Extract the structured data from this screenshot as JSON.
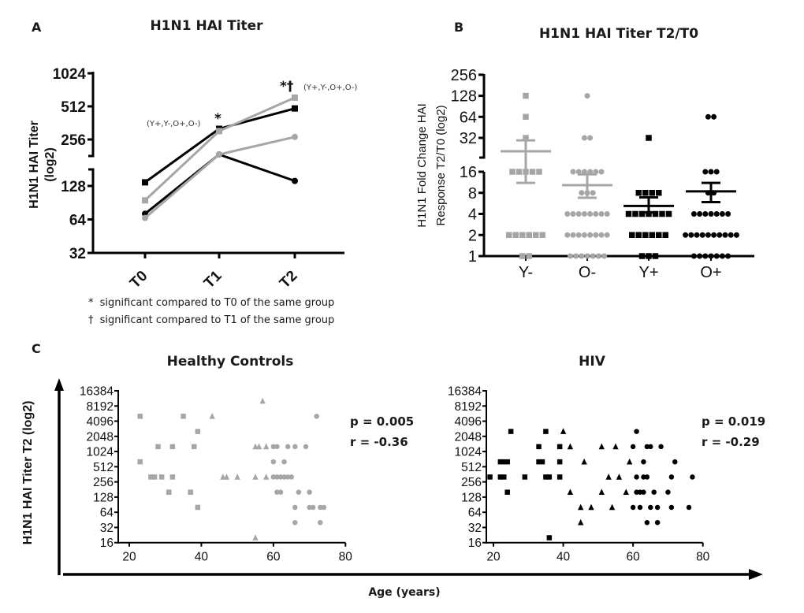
{
  "figure": {
    "panel_letters": {
      "a": "A",
      "b": "B",
      "c": "C"
    },
    "shared_c": {
      "ylabel": "H1N1 HAI Titer T2 (log2)",
      "xlabel": "Age (years)"
    }
  },
  "colors": {
    "black": "#000000",
    "gray": "#a6a6a6"
  },
  "chart_data": [
    {
      "id": "panel-a",
      "type": "line",
      "title": "H1N1 HAI Titer",
      "xlabel": "",
      "ylabel": "H1N1 HAI Titer (log2)",
      "ylabel_lines": [
        "H1N1 HAI Titer",
        "(log2)"
      ],
      "yscale": "log2",
      "ylim": [
        32,
        1024
      ],
      "y_axis_break": [
        180,
        150
      ],
      "yticks": [
        32,
        64,
        128,
        256,
        512,
        1024
      ],
      "ytick_labels": [
        "32",
        "64",
        "128",
        "256",
        "512",
        "1024"
      ],
      "categories": [
        "T0",
        "T1",
        "T2"
      ],
      "grid": false,
      "series": [
        {
          "name": "series-black-square",
          "marker": "square",
          "color": "#000000",
          "values": [
            138,
            320,
            490
          ]
        },
        {
          "name": "series-gray-square",
          "marker": "square",
          "color": "#a6a6a6",
          "values": [
            95,
            305,
            615
          ]
        },
        {
          "name": "series-black-circle",
          "marker": "circle",
          "color": "#000000",
          "values": [
            72,
            187,
            142
          ]
        },
        {
          "name": "series-gray-circle",
          "marker": "circle",
          "color": "#a6a6a6",
          "values": [
            66,
            187,
            270
          ]
        }
      ],
      "annotations": [
        {
          "category": "T1",
          "symbol": "*",
          "groups": "(Y+,Y-,O+,O-)"
        },
        {
          "category": "T2",
          "symbol": "*†",
          "groups": "(Y+,Y-,O+,O-)"
        }
      ],
      "footnotes": [
        {
          "symbol": "*",
          "text": "significant compared to T0 of the same group"
        },
        {
          "symbol": "†",
          "text": "significant compared to T1 of the same group"
        }
      ]
    },
    {
      "id": "panel-b",
      "type": "scatter",
      "title": "H1N1 HAI Titer T2/T0",
      "xlabel": "",
      "ylabel": "H1N1 Fold Change HAI Response T2/T0 (log2)",
      "ylabel_lines": [
        "H1N1 Fold Change HAI",
        "Response T2/T0 (log2)"
      ],
      "yscale": "log2",
      "ylim": [
        1,
        256
      ],
      "y_axis_break": [
        24,
        16
      ],
      "yticks": [
        1,
        2,
        4,
        8,
        16,
        32,
        64,
        128,
        256
      ],
      "ytick_labels": [
        "1",
        "2",
        "4",
        "8",
        "16",
        "32",
        "64",
        "128",
        "256"
      ],
      "categories": [
        "Y-",
        "O-",
        "Y+",
        "O+"
      ],
      "grid": false,
      "groups": [
        {
          "name": "Y-",
          "marker": "square",
          "color": "#a6a6a6",
          "counts": {
            "1": 2,
            "2": 6,
            "16": 5,
            "32": 1,
            "64": 1,
            "128": 1
          },
          "mean": 20.6,
          "sem": [
            11.1,
            29.5
          ]
        },
        {
          "name": "O-",
          "marker": "circle",
          "color": "#a6a6a6",
          "counts": {
            "1": 7,
            "2": 8,
            "4": 8,
            "8": 3,
            "16": 6,
            "32": 2,
            "128": 1
          },
          "mean": 10.3,
          "sem": [
            6.8,
            14.7
          ]
        },
        {
          "name": "Y+",
          "marker": "square",
          "color": "#000000",
          "counts": {
            "1": 3,
            "2": 6,
            "4": 7,
            "8": 4,
            "32": 1
          },
          "mean": 5.2,
          "sem": [
            4.2,
            6.9
          ]
        },
        {
          "name": "O+",
          "marker": "circle",
          "color": "#000000",
          "counts": {
            "1": 7,
            "2": 10,
            "4": 7,
            "8": 2,
            "16": 3,
            "64": 2
          },
          "mean": 8.4,
          "sem": [
            5.9,
            11.1
          ]
        }
      ]
    },
    {
      "id": "panel-c-healthy",
      "type": "scatter",
      "title": "Healthy Controls",
      "xlabel": "Age (years)",
      "ylabel": "H1N1 HAI Titer T2 (log2)",
      "yscale": "log2",
      "xlim": [
        20,
        80
      ],
      "ylim": [
        16,
        16384
      ],
      "xticks": [
        20,
        40,
        60,
        80
      ],
      "xtick_labels": [
        "20",
        "40",
        "60",
        "80"
      ],
      "yticks": [
        16,
        32,
        64,
        128,
        256,
        512,
        1024,
        2048,
        4096,
        8192,
        16384
      ],
      "ytick_labels": [
        "16",
        "32",
        "64",
        "128",
        "256",
        "512",
        "1024",
        "2048",
        "4096",
        "8192",
        "16384"
      ],
      "grid": false,
      "stats": {
        "p": "p = 0.005",
        "r": "r = -0.36"
      },
      "color": "#a6a6a6",
      "series": [
        {
          "name": "squares",
          "marker": "square",
          "points": [
            [
              23,
              5120
            ],
            [
              35,
              5120
            ],
            [
              39,
              2560
            ],
            [
              28,
              1280
            ],
            [
              32,
              1280
            ],
            [
              38,
              1280
            ],
            [
              23,
              640
            ],
            [
              26,
              320
            ],
            [
              27,
              320
            ],
            [
              29,
              320
            ],
            [
              32,
              320
            ],
            [
              31,
              160
            ],
            [
              37,
              160
            ],
            [
              39,
              80
            ]
          ]
        },
        {
          "name": "triangles",
          "marker": "triangle",
          "points": [
            [
              57,
              10240
            ],
            [
              43,
              5120
            ],
            [
              55,
              1280
            ],
            [
              56,
              1280
            ],
            [
              58,
              1280
            ],
            [
              46,
              320
            ],
            [
              47,
              320
            ],
            [
              50,
              320
            ],
            [
              55,
              320
            ],
            [
              58,
              320
            ],
            [
              55,
              20
            ]
          ]
        },
        {
          "name": "circles",
          "marker": "circle",
          "points": [
            [
              72,
              5120
            ],
            [
              60,
              1280
            ],
            [
              61,
              1280
            ],
            [
              64,
              1280
            ],
            [
              66,
              1280
            ],
            [
              69,
              1280
            ],
            [
              60,
              640
            ],
            [
              63,
              640
            ],
            [
              60,
              320
            ],
            [
              61,
              320
            ],
            [
              62,
              320
            ],
            [
              63,
              320
            ],
            [
              64,
              320
            ],
            [
              65,
              320
            ],
            [
              61,
              160
            ],
            [
              62,
              160
            ],
            [
              67,
              160
            ],
            [
              70,
              160
            ],
            [
              66,
              80
            ],
            [
              70,
              80
            ],
            [
              71,
              80
            ],
            [
              73,
              80
            ],
            [
              74,
              80
            ],
            [
              66,
              40
            ],
            [
              73,
              40
            ]
          ]
        }
      ]
    },
    {
      "id": "panel-c-hiv",
      "type": "scatter",
      "title": "HIV",
      "xlabel": "Age (years)",
      "ylabel": "H1N1 HAI Titer T2 (log2)",
      "yscale": "log2",
      "xlim": [
        20,
        80
      ],
      "ylim": [
        16,
        16384
      ],
      "xticks": [
        20,
        40,
        60,
        80
      ],
      "xtick_labels": [
        "20",
        "40",
        "60",
        "80"
      ],
      "yticks": [
        16,
        32,
        64,
        128,
        256,
        512,
        1024,
        2048,
        4096,
        8192,
        16384
      ],
      "ytick_labels": [
        "16",
        "32",
        "64",
        "128",
        "256",
        "512",
        "1024",
        "2048",
        "4096",
        "8192",
        "16384"
      ],
      "grid": false,
      "stats": {
        "p": "p = 0.019",
        "r": "r = -0.29"
      },
      "color": "#000000",
      "series": [
        {
          "name": "squares",
          "marker": "square",
          "points": [
            [
              25,
              2560
            ],
            [
              35,
              2560
            ],
            [
              33,
              1280
            ],
            [
              39,
              1280
            ],
            [
              22,
              640
            ],
            [
              23,
              640
            ],
            [
              24,
              640
            ],
            [
              33,
              640
            ],
            [
              34,
              640
            ],
            [
              39,
              640
            ],
            [
              19,
              320
            ],
            [
              22,
              320
            ],
            [
              23,
              320
            ],
            [
              29,
              320
            ],
            [
              35,
              320
            ],
            [
              36,
              320
            ],
            [
              39,
              320
            ],
            [
              24,
              160
            ],
            [
              36,
              20
            ]
          ]
        },
        {
          "name": "triangles",
          "marker": "triangle",
          "points": [
            [
              40,
              2560
            ],
            [
              42,
              1280
            ],
            [
              51,
              1280
            ],
            [
              55,
              1280
            ],
            [
              46,
              640
            ],
            [
              59,
              640
            ],
            [
              53,
              320
            ],
            [
              56,
              320
            ],
            [
              42,
              160
            ],
            [
              51,
              160
            ],
            [
              58,
              160
            ],
            [
              45,
              80
            ],
            [
              48,
              80
            ],
            [
              54,
              80
            ],
            [
              45,
              40
            ]
          ]
        },
        {
          "name": "circles",
          "marker": "circle",
          "points": [
            [
              61,
              2560
            ],
            [
              60,
              1280
            ],
            [
              64,
              1280
            ],
            [
              65,
              1280
            ],
            [
              68,
              1280
            ],
            [
              63,
              640
            ],
            [
              72,
              640
            ],
            [
              61,
              320
            ],
            [
              63,
              320
            ],
            [
              64,
              320
            ],
            [
              71,
              320
            ],
            [
              77,
              320
            ],
            [
              61,
              160
            ],
            [
              62,
              160
            ],
            [
              63,
              160
            ],
            [
              66,
              160
            ],
            [
              70,
              160
            ],
            [
              60,
              80
            ],
            [
              62,
              80
            ],
            [
              65,
              80
            ],
            [
              67,
              80
            ],
            [
              71,
              80
            ],
            [
              76,
              80
            ],
            [
              64,
              40
            ],
            [
              67,
              40
            ]
          ]
        }
      ]
    }
  ]
}
